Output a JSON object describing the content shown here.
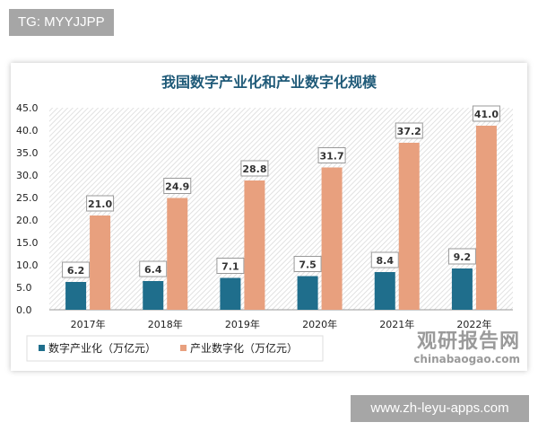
{
  "tag_label": "TG: MYYJJPP",
  "site_label": "www.zh-leyu-apps.com",
  "watermark": {
    "cn": "观研报告网",
    "en": "chinabaogao.com"
  },
  "chart_data": {
    "type": "bar",
    "title": "我国数字产业化和产业数字化规模",
    "categories": [
      "2017年",
      "2018年",
      "2019年",
      "2020年",
      "2021年",
      "2022年"
    ],
    "series": [
      {
        "name": "数字产业化（万亿元）",
        "values": [
          6.2,
          6.4,
          7.1,
          7.5,
          8.4,
          9.2
        ],
        "color": "#1f6e8c"
      },
      {
        "name": "产业数字化（万亿元）",
        "values": [
          21.0,
          24.9,
          28.8,
          31.7,
          37.2,
          41.0
        ],
        "color": "#e8a07e"
      }
    ],
    "ylim": [
      0,
      45
    ],
    "yticks": [
      "0.0",
      "5.0",
      "10.0",
      "15.0",
      "20.0",
      "25.0",
      "30.0",
      "35.0",
      "40.0",
      "45.0"
    ],
    "grid": "hatched background",
    "legend": "bottom"
  }
}
